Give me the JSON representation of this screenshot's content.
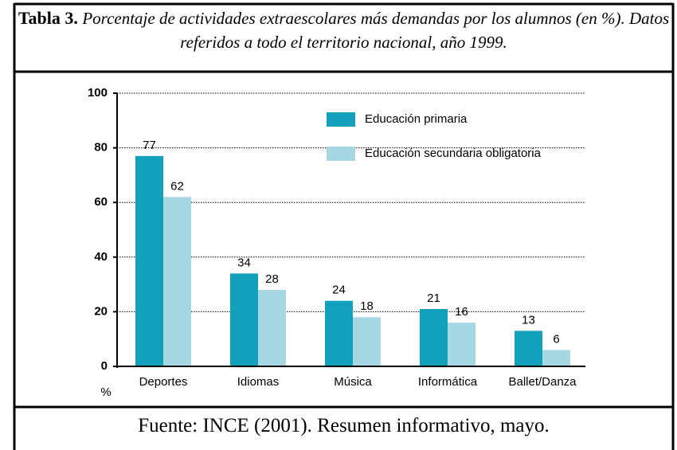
{
  "chart_data": {
    "type": "bar",
    "table_label": "Tabla 3.",
    "title": "Porcentaje de actividades extraescolares más demandas por los alumnos (en %). Datos referidos a todo el territorio nacional, año 1999.",
    "ylabel": "%",
    "source": "Fuente: INCE (2001). Resumen informativo, mayo.",
    "categories": [
      "Deportes",
      "Idiomas",
      "Música",
      "Informática",
      "Ballet/Danza"
    ],
    "series": [
      {
        "name": "Educación primaria",
        "color": "#13a0bb",
        "values": [
          77,
          34,
          24,
          21,
          13
        ]
      },
      {
        "name": "Educación secundaria obligatoria",
        "color": "#a7d7e2",
        "values": [
          62,
          28,
          18,
          16,
          6
        ]
      }
    ],
    "ylim": [
      0,
      100
    ],
    "yticks": [
      0,
      20,
      40,
      60,
      80,
      100
    ],
    "grid": true,
    "legend": "top-right"
  }
}
